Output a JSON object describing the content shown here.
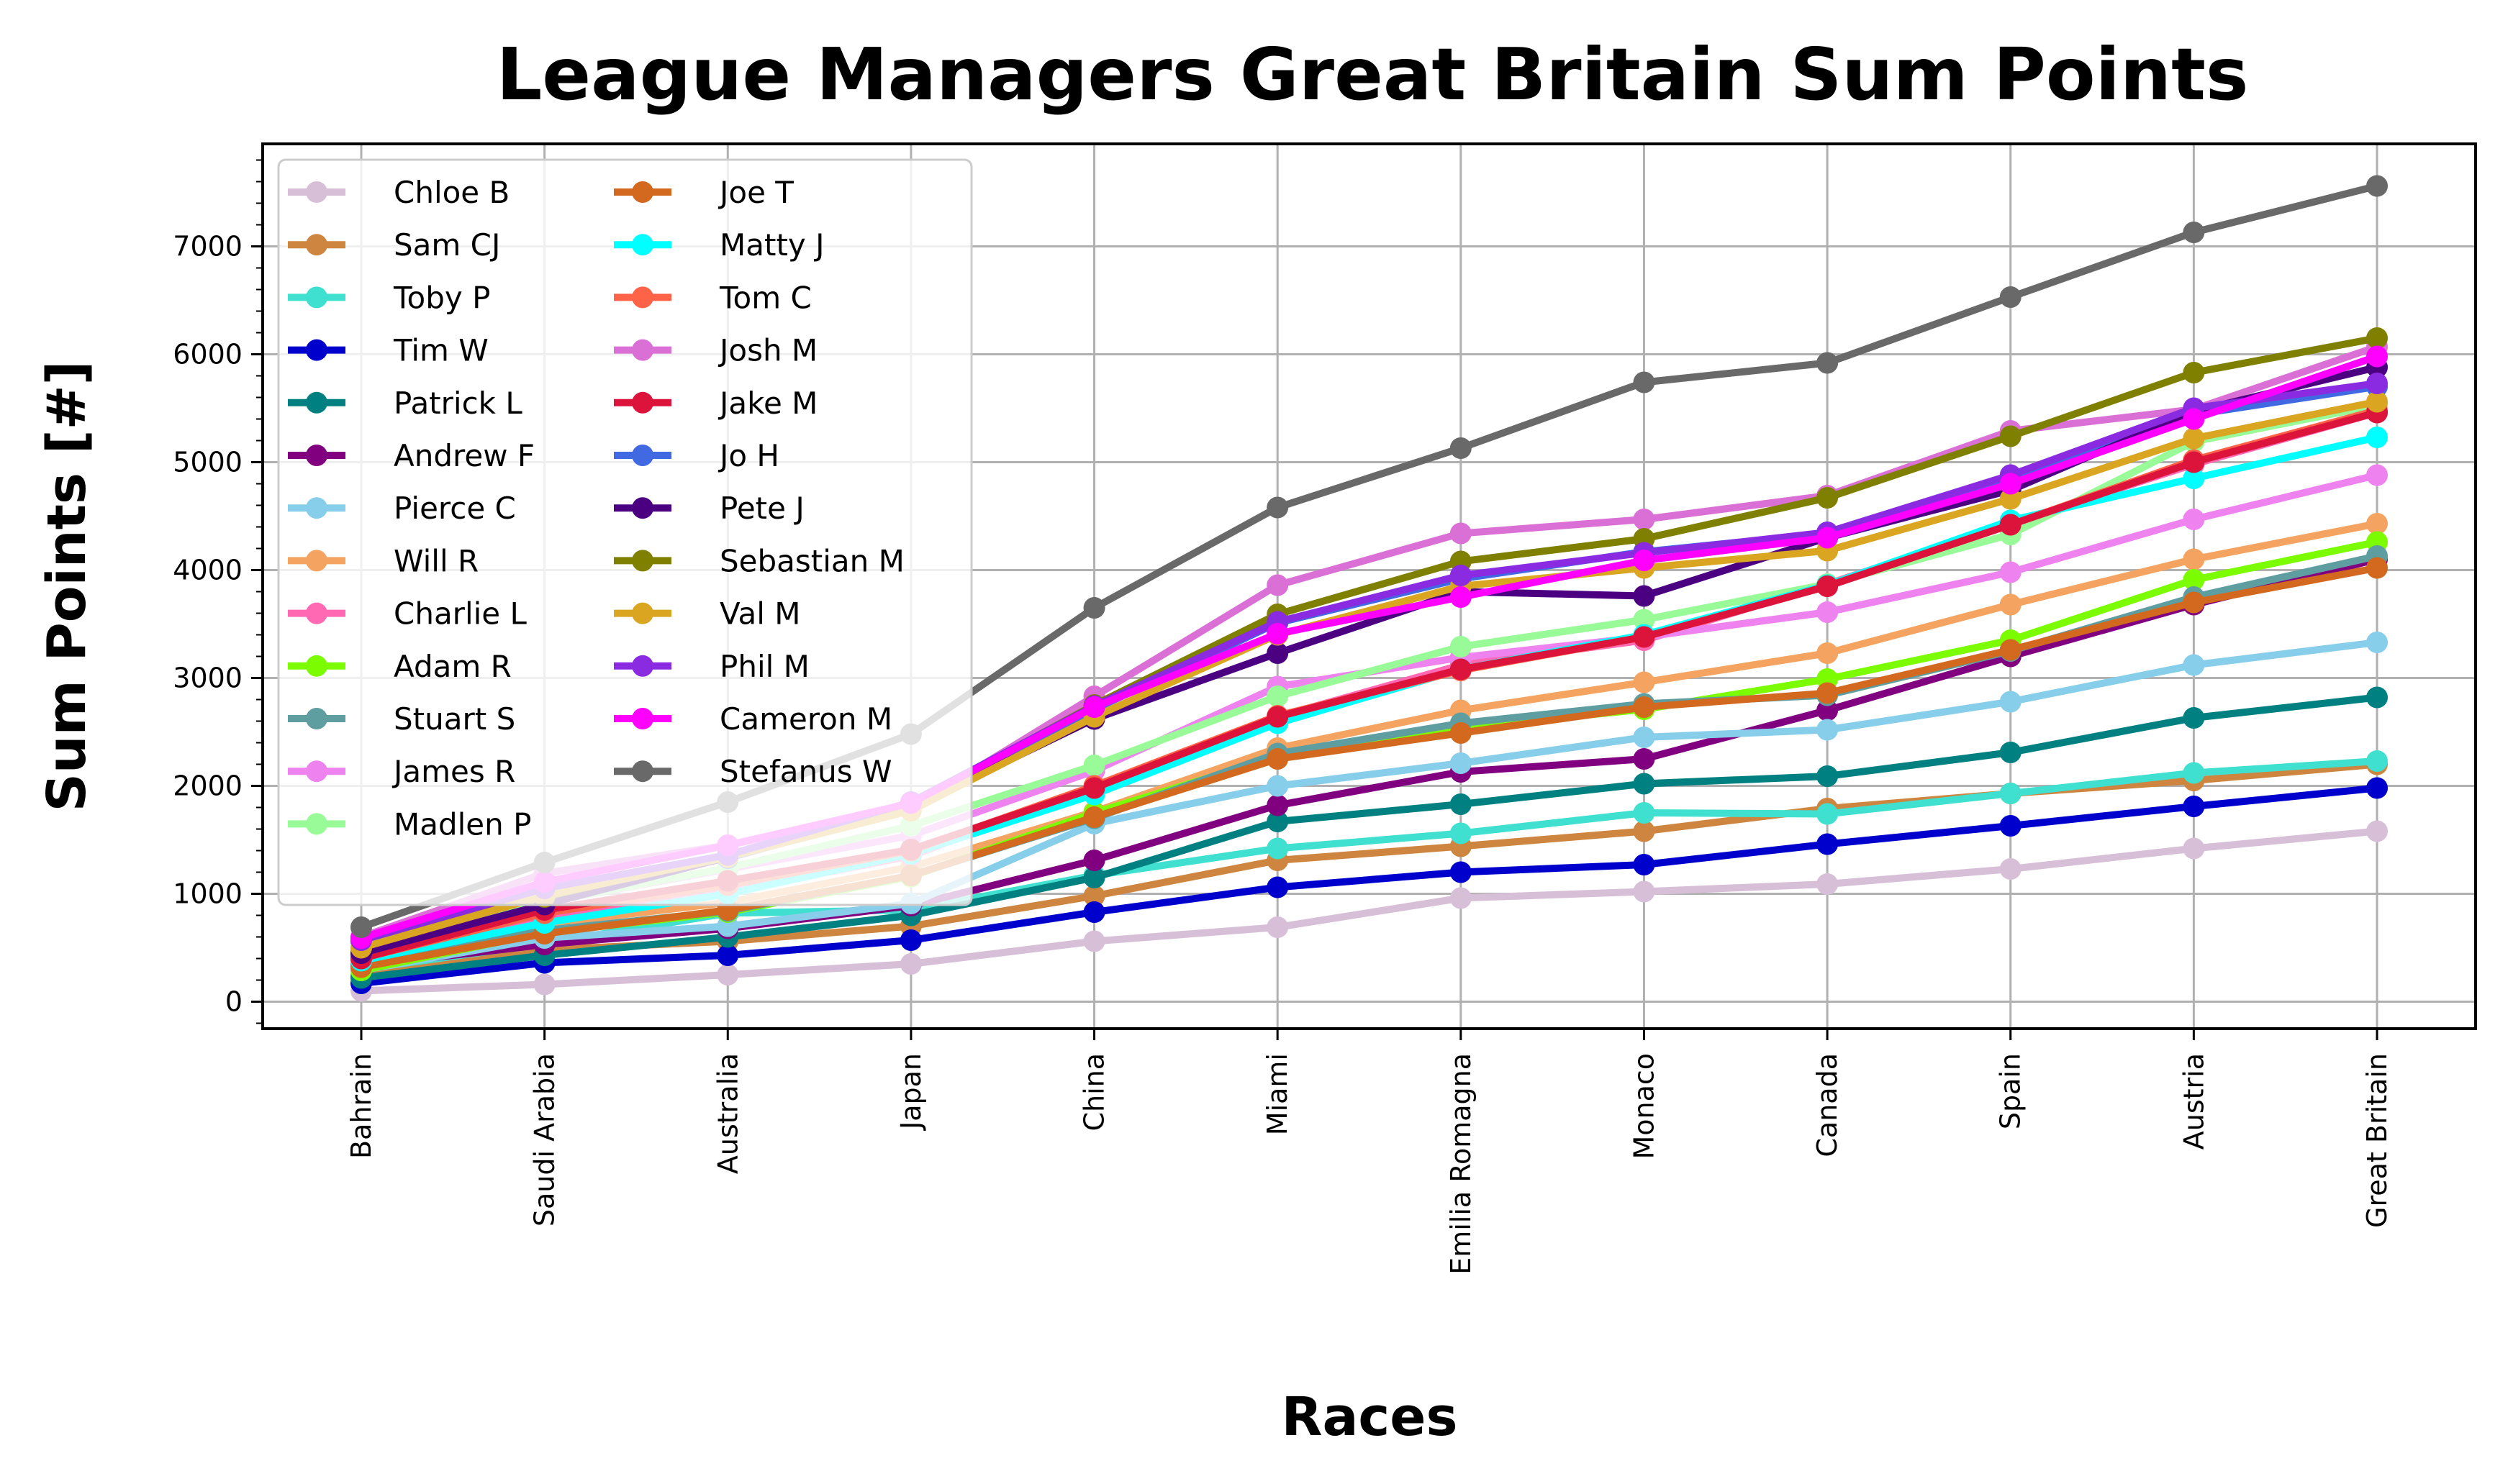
{
  "chart_data": {
    "type": "line",
    "title": "League Managers Great Britain Sum Points",
    "xlabel": "Races",
    "ylabel": "Sum Points [#]",
    "categories": [
      "Bahrain",
      "Saudi Arabia",
      "Australia",
      "Japan",
      "China",
      "Miami",
      "Emilia Romagna",
      "Monaco",
      "Canada",
      "Spain",
      "Austria",
      "Great Britain"
    ],
    "ylim": [
      -250,
      7950
    ],
    "yticks": [
      0,
      1000,
      2000,
      3000,
      4000,
      5000,
      6000,
      7000
    ],
    "grid": true,
    "legend_position": "upper-left",
    "legend_columns": 2,
    "series": [
      {
        "name": "Chloe B",
        "color": "#d8bfd8",
        "values": [
          100,
          160,
          250,
          350,
          560,
          690,
          960,
          1020,
          1090,
          1230,
          1420,
          1580
        ]
      },
      {
        "name": "Sam CJ",
        "color": "#cd853f",
        "values": [
          240,
          480,
          560,
          700,
          980,
          1310,
          1440,
          1580,
          1790,
          1930,
          2050,
          2200
        ]
      },
      {
        "name": "Toby P",
        "color": "#40e0d0",
        "values": [
          300,
          540,
          820,
          850,
          1170,
          1420,
          1560,
          1750,
          1740,
          1930,
          2120,
          2230
        ]
      },
      {
        "name": "Tim W",
        "color": "#0000cd",
        "values": [
          170,
          360,
          430,
          570,
          830,
          1060,
          1200,
          1270,
          1460,
          1630,
          1810,
          1980
        ]
      },
      {
        "name": "Patrick L",
        "color": "#008080",
        "values": [
          220,
          430,
          600,
          800,
          1150,
          1670,
          1830,
          2020,
          2090,
          2310,
          2630,
          2820
        ]
      },
      {
        "name": "Andrew F",
        "color": "#800080",
        "values": [
          330,
          530,
          680,
          890,
          1310,
          1820,
          2130,
          2250,
          2700,
          3200,
          3680,
          4100
        ]
      },
      {
        "name": "Pierce C",
        "color": "#87ceeb",
        "values": [
          290,
          590,
          700,
          910,
          1650,
          2000,
          2210,
          2450,
          2520,
          2780,
          3120,
          3330
        ]
      },
      {
        "name": "Will R",
        "color": "#f4a460",
        "values": [
          390,
          720,
          920,
          1250,
          1760,
          2350,
          2700,
          2960,
          3230,
          3680,
          4100,
          4430
        ]
      },
      {
        "name": "Charlie L",
        "color": "#ff69b4",
        "values": [
          420,
          780,
          1020,
          1350,
          1990,
          2640,
          3120,
          3350,
          3870,
          4430,
          4980,
          5460
        ]
      },
      {
        "name": "Adam R",
        "color": "#7cfc00",
        "values": [
          290,
          640,
          830,
          1160,
          1750,
          2270,
          2540,
          2710,
          2990,
          3350,
          3910,
          4260
        ]
      },
      {
        "name": "Stuart S",
        "color": "#5f9ea0",
        "values": [
          350,
          660,
          840,
          1170,
          1700,
          2300,
          2580,
          2760,
          2840,
          3250,
          3750,
          4130
        ]
      },
      {
        "name": "James R",
        "color": "#ee82ee",
        "values": [
          440,
          920,
          1230,
          1540,
          2140,
          2920,
          3190,
          3380,
          3610,
          3980,
          4470,
          4880
        ]
      },
      {
        "name": "Madlen P",
        "color": "#98fb98",
        "values": [
          490,
          920,
          1240,
          1630,
          2190,
          2830,
          3290,
          3540,
          3870,
          4330,
          5190,
          5530
        ]
      },
      {
        "name": "Joe T",
        "color": "#d2691e",
        "values": [
          320,
          630,
          850,
          1170,
          1710,
          2250,
          2490,
          2730,
          2860,
          3260,
          3700,
          4020
        ]
      },
      {
        "name": "Matty J",
        "color": "#00ffff",
        "values": [
          380,
          730,
          1000,
          1370,
          1920,
          2580,
          3080,
          3400,
          3860,
          4460,
          4850,
          5230
        ]
      },
      {
        "name": "Tom C",
        "color": "#ff6347",
        "values": [
          400,
          820,
          1080,
          1400,
          2000,
          2650,
          3070,
          3380,
          3850,
          4420,
          5020,
          5480
        ]
      },
      {
        "name": "Josh M",
        "color": "#da70d6",
        "values": [
          600,
          1190,
          1450,
          1790,
          2830,
          3860,
          4340,
          4470,
          4690,
          5290,
          5490,
          6070
        ]
      },
      {
        "name": "Jake M",
        "color": "#dc143c",
        "values": [
          400,
          850,
          1120,
          1410,
          1980,
          2640,
          3080,
          3380,
          3850,
          4420,
          5000,
          5460
        ]
      },
      {
        "name": "Jo H",
        "color": "#4169e1",
        "values": [
          560,
          1000,
          1330,
          1800,
          2710,
          3510,
          3920,
          4170,
          4340,
          4810,
          5440,
          5700
        ]
      },
      {
        "name": "Pete J",
        "color": "#4b0082",
        "values": [
          450,
          900,
          1340,
          1800,
          2620,
          3230,
          3800,
          3760,
          4300,
          4740,
          5470,
          5880
        ]
      },
      {
        "name": "Sebastian M",
        "color": "#808000",
        "values": [
          590,
          970,
          1360,
          1830,
          2750,
          3590,
          4080,
          4290,
          4670,
          5240,
          5830,
          6150
        ]
      },
      {
        "name": "Val M",
        "color": "#daa520",
        "values": [
          500,
          980,
          1340,
          1770,
          2640,
          3400,
          3850,
          4020,
          4180,
          4660,
          5220,
          5560
        ]
      },
      {
        "name": "Phil M",
        "color": "#8a2be2",
        "values": [
          570,
          1050,
          1360,
          1850,
          2740,
          3520,
          3950,
          4160,
          4350,
          4880,
          5500,
          5730
        ]
      },
      {
        "name": "Cameron M",
        "color": "#ff00ff",
        "values": [
          590,
          1110,
          1450,
          1840,
          2730,
          3410,
          3750,
          4090,
          4300,
          4800,
          5400,
          5980
        ]
      },
      {
        "name": "Stefanus W",
        "color": "#696969",
        "values": [
          690,
          1290,
          1850,
          2480,
          3650,
          4580,
          5130,
          5740,
          5920,
          6530,
          7130,
          7560
        ]
      }
    ]
  }
}
